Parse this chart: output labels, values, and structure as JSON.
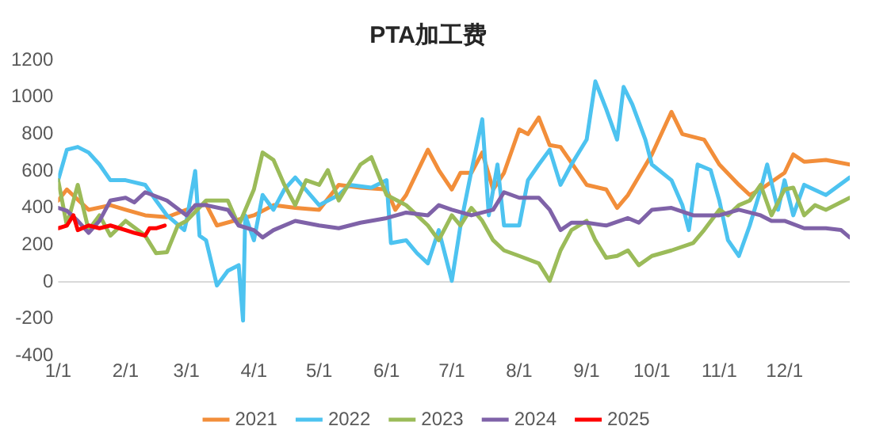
{
  "chart_data": {
    "type": "line",
    "title": "PTA加工费",
    "xlim": [
      "--01-01",
      "--12-31"
    ],
    "xticks": [
      {
        "value": "--01-01",
        "label": "1/1"
      },
      {
        "value": "--02-01",
        "label": "2/1"
      },
      {
        "value": "--03-01",
        "label": "3/1"
      },
      {
        "value": "--04-01",
        "label": "4/1"
      },
      {
        "value": "--05-01",
        "label": "5/1"
      },
      {
        "value": "--06-01",
        "label": "6/1"
      },
      {
        "value": "--07-01",
        "label": "7/1"
      },
      {
        "value": "--08-01",
        "label": "8/1"
      },
      {
        "value": "--09-01",
        "label": "9/1"
      },
      {
        "value": "--10-01",
        "label": "10/1"
      },
      {
        "value": "--11-01",
        "label": "11/1"
      },
      {
        "value": "--12-01",
        "label": "12/1"
      }
    ],
    "ylim": [
      -400,
      1200
    ],
    "yticks": [
      -400,
      -200,
      0,
      200,
      400,
      600,
      800,
      1000,
      1200
    ],
    "grid": false,
    "legend": "bottom",
    "marker": "none",
    "line_style": "solid",
    "ref_lines": [
      {
        "axis": "y",
        "value": 0,
        "color": "#d9d9d9"
      }
    ],
    "series": [
      {
        "name": "2021",
        "color": "#f28e3a",
        "x": [
          "--01-01",
          "--01-05",
          "--01-15",
          "--01-25",
          "--02-01",
          "--02-10",
          "--02-20",
          "--03-01",
          "--03-10",
          "--03-15",
          "--04-01",
          "--04-10",
          "--04-20",
          "--05-01",
          "--05-10",
          "--05-20",
          "--06-01",
          "--06-05",
          "--06-10",
          "--06-20",
          "--06-25",
          "--07-01",
          "--07-05",
          "--07-10",
          "--07-15",
          "--07-20",
          "--07-25",
          "--08-01",
          "--08-05",
          "--08-10",
          "--08-15",
          "--08-20",
          "--09-01",
          "--09-10",
          "--09-15",
          "--09-20",
          "--10-01",
          "--10-10",
          "--10-15",
          "--10-25",
          "--11-01",
          "--11-10",
          "--11-15",
          "--11-20",
          "--12-01",
          "--12-05",
          "--12-10",
          "--12-20",
          "--12-31"
        ],
        "values": [
          440,
          500,
          390,
          415,
          390,
          360,
          350,
          390,
          420,
          305,
          360,
          415,
          400,
          390,
          525,
          510,
          500,
          390,
          470,
          715,
          605,
          500,
          590,
          590,
          700,
          500,
          590,
          825,
          800,
          890,
          740,
          730,
          525,
          500,
          400,
          470,
          690,
          920,
          800,
          770,
          635,
          525,
          470,
          500,
          590,
          690,
          650,
          660,
          635
        ]
      },
      {
        "name": "2022",
        "color": "#4dc3f0",
        "x": [
          "--01-01",
          "--01-05",
          "--01-10",
          "--01-15",
          "--01-20",
          "--01-25",
          "--02-01",
          "--02-10",
          "--02-15",
          "--02-20",
          "--02-28",
          "--03-01",
          "--03-05",
          "--03-07",
          "--03-10",
          "--03-15",
          "--03-20",
          "--03-25",
          "--03-27",
          "--03-28",
          "--04-01",
          "--04-05",
          "--04-10",
          "--04-15",
          "--04-20",
          "--05-01",
          "--05-10",
          "--05-15",
          "--05-25",
          "--06-01",
          "--06-03",
          "--06-10",
          "--06-15",
          "--06-20",
          "--06-25",
          "--07-01",
          "--07-05",
          "--07-10",
          "--07-15",
          "--07-18",
          "--07-22",
          "--07-25",
          "--08-01",
          "--08-05",
          "--08-10",
          "--08-15",
          "--08-20",
          "--08-25",
          "--09-01",
          "--09-05",
          "--09-10",
          "--09-15",
          "--09-18",
          "--09-22",
          "--09-28",
          "--10-01",
          "--10-10",
          "--10-15",
          "--10-18",
          "--10-22",
          "--10-28",
          "--11-01",
          "--11-05",
          "--11-10",
          "--11-15",
          "--11-20",
          "--11-23",
          "--11-28",
          "--12-01",
          "--12-05",
          "--12-10",
          "--12-20",
          "--12-31"
        ],
        "values": [
          550,
          715,
          730,
          700,
          635,
          550,
          550,
          525,
          440,
          360,
          280,
          330,
          600,
          250,
          225,
          -20,
          60,
          90,
          -210,
          360,
          225,
          470,
          390,
          500,
          565,
          415,
          470,
          525,
          510,
          550,
          210,
          225,
          155,
          100,
          280,
          5,
          305,
          600,
          880,
          360,
          635,
          305,
          305,
          550,
          635,
          715,
          525,
          635,
          770,
          1085,
          935,
          770,
          1055,
          960,
          770,
          635,
          550,
          415,
          280,
          635,
          605,
          440,
          225,
          140,
          305,
          500,
          635,
          390,
          550,
          360,
          525,
          470,
          565
        ]
      },
      {
        "name": "2023",
        "color": "#9bbb59",
        "x": [
          "--01-01",
          "--01-05",
          "--01-10",
          "--01-15",
          "--01-20",
          "--01-25",
          "--02-01",
          "--02-10",
          "--02-15",
          "--02-20",
          "--02-25",
          "--03-01",
          "--03-10",
          "--03-20",
          "--03-25",
          "--04-01",
          "--04-05",
          "--04-10",
          "--04-15",
          "--04-20",
          "--04-25",
          "--05-01",
          "--05-05",
          "--05-10",
          "--05-20",
          "--05-25",
          "--06-01",
          "--06-10",
          "--06-15",
          "--06-20",
          "--06-25",
          "--07-01",
          "--07-05",
          "--07-10",
          "--07-15",
          "--07-20",
          "--07-25",
          "--08-01",
          "--08-10",
          "--08-15",
          "--08-20",
          "--08-25",
          "--09-01",
          "--09-05",
          "--09-10",
          "--09-15",
          "--09-20",
          "--09-25",
          "--10-01",
          "--10-10",
          "--10-20",
          "--10-25",
          "--11-01",
          "--11-05",
          "--11-10",
          "--11-15",
          "--11-20",
          "--11-25",
          "--12-01",
          "--12-05",
          "--12-10",
          "--12-15",
          "--12-20",
          "--12-31"
        ],
        "values": [
          550,
          305,
          525,
          280,
          360,
          250,
          330,
          250,
          155,
          160,
          305,
          330,
          440,
          440,
          305,
          500,
          700,
          660,
          525,
          415,
          550,
          525,
          605,
          440,
          635,
          675,
          470,
          415,
          360,
          305,
          225,
          360,
          305,
          400,
          330,
          225,
          170,
          140,
          100,
          5,
          170,
          280,
          330,
          225,
          130,
          140,
          170,
          90,
          140,
          170,
          210,
          280,
          390,
          360,
          415,
          440,
          525,
          360,
          500,
          510,
          360,
          415,
          390,
          455
        ]
      },
      {
        "name": "2024",
        "color": "#7f62a8",
        "x": [
          "--01-01",
          "--01-05",
          "--01-10",
          "--01-15",
          "--01-20",
          "--01-25",
          "--02-01",
          "--02-05",
          "--02-10",
          "--02-20",
          "--03-01",
          "--03-05",
          "--03-10",
          "--03-20",
          "--03-25",
          "--04-01",
          "--04-05",
          "--04-10",
          "--04-20",
          "--05-01",
          "--05-10",
          "--05-20",
          "--06-01",
          "--06-10",
          "--06-20",
          "--06-25",
          "--07-01",
          "--07-10",
          "--07-20",
          "--07-25",
          "--08-01",
          "--08-10",
          "--08-15",
          "--08-20",
          "--08-25",
          "--09-01",
          "--09-10",
          "--09-20",
          "--09-25",
          "--10-01",
          "--10-10",
          "--10-20",
          "--11-01",
          "--11-10",
          "--11-20",
          "--11-25",
          "--12-01",
          "--12-10",
          "--12-20",
          "--12-27",
          "--12-31"
        ],
        "values": [
          400,
          385,
          330,
          265,
          330,
          440,
          455,
          430,
          485,
          440,
          360,
          415,
          415,
          390,
          305,
          280,
          240,
          280,
          330,
          305,
          290,
          320,
          345,
          375,
          360,
          415,
          390,
          360,
          390,
          485,
          455,
          455,
          390,
          280,
          320,
          320,
          305,
          345,
          320,
          390,
          400,
          360,
          360,
          390,
          360,
          330,
          330,
          290,
          290,
          280,
          240
        ]
      },
      {
        "name": "2025",
        "color": "#ff0000",
        "x": [
          "--01-01",
          "--01-05",
          "--01-08",
          "--01-10",
          "--01-15",
          "--01-20",
          "--01-25",
          "--02-01",
          "--02-05",
          "--02-10",
          "--02-12",
          "--02-15",
          "--02-19"
        ],
        "values": [
          290,
          305,
          360,
          280,
          305,
          290,
          305,
          280,
          265,
          250,
          290,
          290,
          305
        ]
      }
    ]
  }
}
